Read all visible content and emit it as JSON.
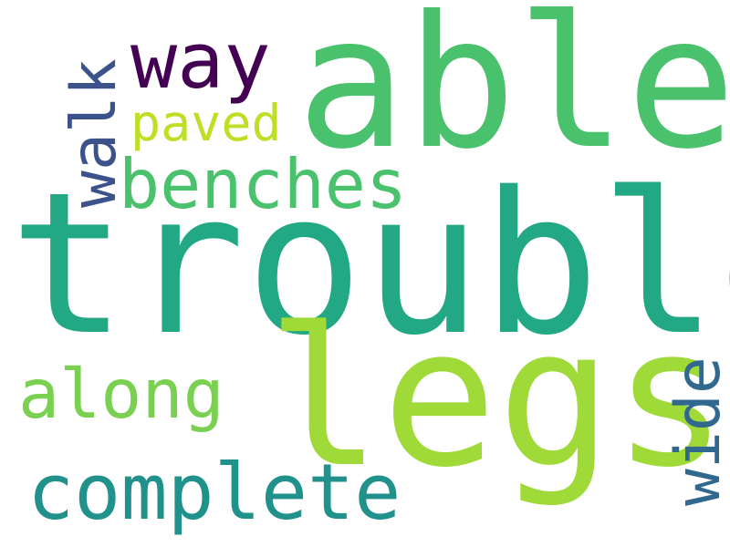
{
  "words": [
    {
      "id": "trouble",
      "text": "trouble",
      "color": "#22a884"
    },
    {
      "id": "able",
      "text": "able",
      "color": "#4ac16d"
    },
    {
      "id": "legs",
      "text": "legs",
      "color": "#a0da39"
    },
    {
      "id": "way",
      "text": "way",
      "color": "#440154"
    },
    {
      "id": "paved",
      "text": "paved",
      "color": "#bddf26"
    },
    {
      "id": "benches",
      "text": "benches",
      "color": "#4ac16d"
    },
    {
      "id": "along",
      "text": "along",
      "color": "#7ad151"
    },
    {
      "id": "complete",
      "text": "complete",
      "color": "#21918c"
    },
    {
      "id": "walk",
      "text": "walk",
      "color": "#3b528b"
    },
    {
      "id": "wide",
      "text": "wide",
      "color": "#31688e"
    }
  ]
}
